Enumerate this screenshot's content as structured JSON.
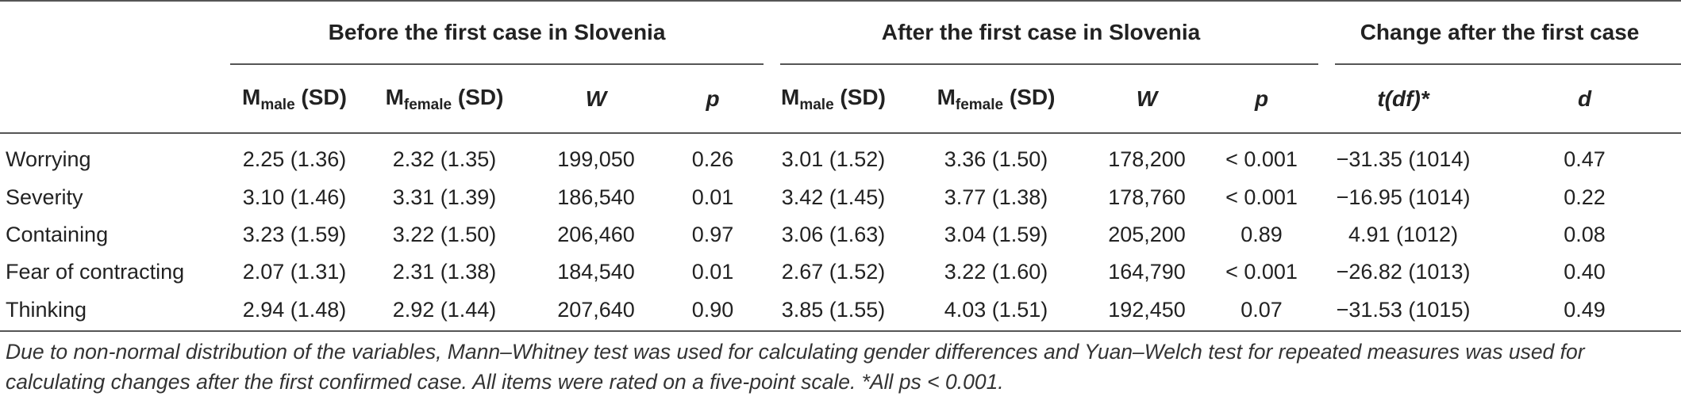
{
  "table": {
    "groups": [
      "Before the first case in Slovenia",
      "After the first case in Slovenia",
      "Change after the first case"
    ],
    "subheaders": {
      "m_male": {
        "base": "M",
        "sub": "male",
        "rest": " (SD)"
      },
      "m_female": {
        "base": "M",
        "sub": "female",
        "rest": " (SD)"
      },
      "w": "W",
      "p": "p",
      "t_prefix": "t(",
      "t_df": "df",
      "t_suffix": ")*",
      "d": "d"
    },
    "rows": [
      {
        "label": "Worrying",
        "before_male": "2.25 (1.36)",
        "before_female": "2.32 (1.35)",
        "before_w": "199,050",
        "before_p": "0.26",
        "after_male": "3.01 (1.52)",
        "after_female": "3.36 (1.50)",
        "after_w": "178,200",
        "after_p": "< 0.001",
        "t": "−31.35 (1014)",
        "d": "0.47"
      },
      {
        "label": "Severity",
        "before_male": "3.10 (1.46)",
        "before_female": "3.31 (1.39)",
        "before_w": "186,540",
        "before_p": "0.01",
        "after_male": "3.42 (1.45)",
        "after_female": "3.77 (1.38)",
        "after_w": "178,760",
        "after_p": "< 0.001",
        "t": "−16.95 (1014)",
        "d": "0.22"
      },
      {
        "label": "Containing",
        "before_male": "3.23 (1.59)",
        "before_female": "3.22 (1.50)",
        "before_w": "206,460",
        "before_p": "0.97",
        "after_male": "3.06 (1.63)",
        "after_female": "3.04 (1.59)",
        "after_w": "205,200",
        "after_p": "0.89",
        "t": "4.91 (1012)",
        "d": "0.08"
      },
      {
        "label": "Fear of contracting",
        "before_male": "2.07 (1.31)",
        "before_female": "2.31 (1.38)",
        "before_w": "184,540",
        "before_p": "0.01",
        "after_male": "2.67 (1.52)",
        "after_female": "3.22 (1.60)",
        "after_w": "164,790",
        "after_p": "< 0.001",
        "t": "−26.82 (1013)",
        "d": "0.40"
      },
      {
        "label": "Thinking",
        "before_male": "2.94 (1.48)",
        "before_female": "2.92 (1.44)",
        "before_w": "207,640",
        "before_p": "0.90",
        "after_male": "3.85 (1.55)",
        "after_female": "4.03 (1.51)",
        "after_w": "192,450",
        "after_p": "0.07",
        "t": "−31.53 (1015)",
        "d": "0.49"
      }
    ],
    "note": "Due to non-normal distribution of the variables, Mann–Whitney test was used for calculating gender differences and Yuan–Welch test for repeated measures was used for calculating changes after the first confirmed case. All items were rated on a five-point scale. *All ps < 0.001."
  }
}
